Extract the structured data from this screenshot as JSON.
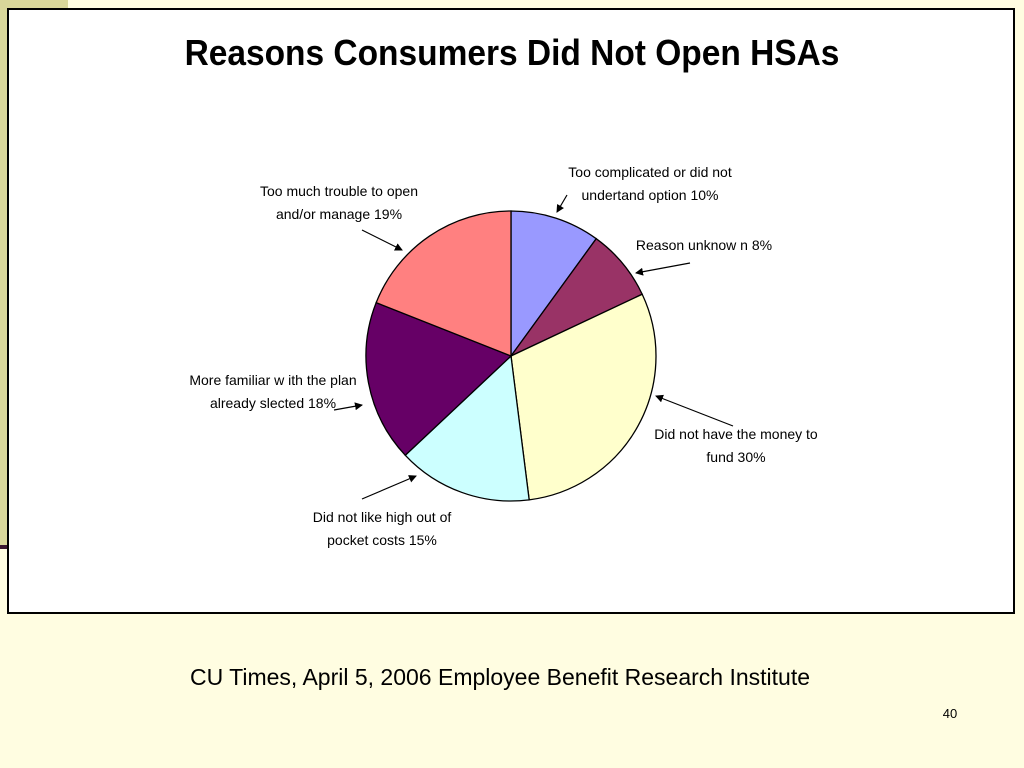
{
  "chart_data": {
    "type": "pie",
    "title": "Reasons Consumers Did Not Open HSAs",
    "categories": [
      "Too complicated or did not undertand option",
      "Reason unknow n",
      "Did not have the money to fund",
      "Did not like high out of pocket costs",
      "More familiar w ith the plan already slected",
      "Too much trouble to open and/or manage"
    ],
    "values": [
      10,
      8,
      30,
      15,
      18,
      19
    ],
    "colors": [
      "#9999ff",
      "#993366",
      "#ffffcc",
      "#ccffff",
      "#660066",
      "#ff8080"
    ],
    "labels": [
      {
        "line1": "Too complicated or did not",
        "line2": "undertand option 10%"
      },
      {
        "line1": "Reason unknow n 8%",
        "line2": ""
      },
      {
        "line1": "Did not have the money to",
        "line2": "fund 30%"
      },
      {
        "line1": "Did not like high out of",
        "line2": "pocket costs 15%"
      },
      {
        "line1": "More familiar w ith the plan",
        "line2": "already slected 18%"
      },
      {
        "line1": "Too much trouble to open",
        "line2": "and/or manage 19%"
      }
    ],
    "legend": "none"
  },
  "footer": {
    "source": "CU Times, April 5, 2006 Employee Benefit Research Institute",
    "page_number": "40"
  }
}
